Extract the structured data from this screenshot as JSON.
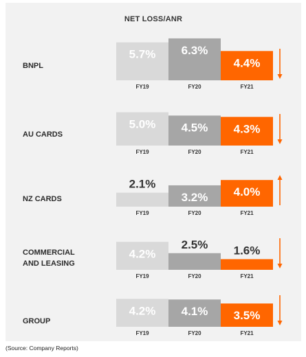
{
  "chart_data": {
    "type": "bar",
    "title": "NET LOSS/ANR",
    "categories": [
      "FY19",
      "FY20",
      "FY21"
    ],
    "series_colors": [
      "#d9d9d9",
      "#a6a6a6",
      "#ff6600"
    ],
    "trend_arrow_color": "#ff6600",
    "groups": [
      {
        "label": "BNPL",
        "values": [
          5.7,
          6.3,
          4.4
        ],
        "value_labels": [
          "5.7%",
          "6.3%",
          "4.4%"
        ],
        "trend": "down"
      },
      {
        "label": "AU CARDS",
        "values": [
          5.0,
          4.5,
          4.3
        ],
        "value_labels": [
          "5.0%",
          "4.5%",
          "4.3%"
        ],
        "trend": "down"
      },
      {
        "label": "NZ CARDS",
        "values": [
          2.1,
          3.2,
          4.0
        ],
        "value_labels": [
          "2.1%",
          "3.2%",
          "4.0%"
        ],
        "trend": "up"
      },
      {
        "label": "COMMERCIAL\nAND LEASING",
        "values": [
          4.2,
          2.5,
          1.6
        ],
        "value_labels": [
          "4.2%",
          "2.5%",
          "1.6%"
        ],
        "trend": "down"
      },
      {
        "label": "GROUP",
        "values": [
          4.2,
          4.1,
          3.5
        ],
        "value_labels": [
          "4.2%",
          "4.1%",
          "3.5%"
        ],
        "trend": "down"
      }
    ]
  },
  "source_note": "(Source: Company Reports)"
}
